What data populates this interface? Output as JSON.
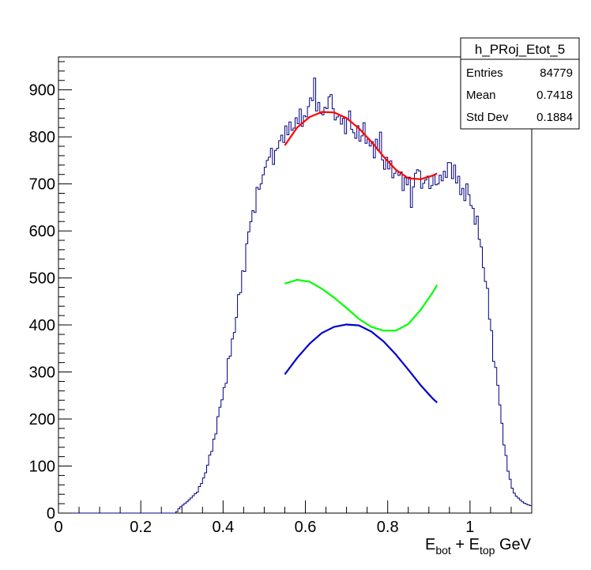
{
  "chart_data": {
    "type": "line",
    "histogram": {
      "name": "h_PRoj_Etot_5",
      "x_min": 0.0,
      "x_max": 1.15,
      "bins": 230,
      "color": "#000080",
      "profile": [
        [
          0.0,
          0
        ],
        [
          0.285,
          0
        ],
        [
          0.295,
          12
        ],
        [
          0.31,
          22
        ],
        [
          0.32,
          30
        ],
        [
          0.34,
          48
        ],
        [
          0.355,
          80
        ],
        [
          0.37,
          125
        ],
        [
          0.38,
          165
        ],
        [
          0.39,
          210
        ],
        [
          0.4,
          255
        ],
        [
          0.41,
          300
        ],
        [
          0.42,
          350
        ],
        [
          0.43,
          410
        ],
        [
          0.44,
          460
        ],
        [
          0.45,
          520
        ],
        [
          0.46,
          580
        ],
        [
          0.47,
          630
        ],
        [
          0.48,
          670
        ],
        [
          0.49,
          700
        ],
        [
          0.5,
          740
        ],
        [
          0.51,
          760
        ],
        [
          0.52,
          760
        ],
        [
          0.53,
          770
        ],
        [
          0.54,
          790
        ],
        [
          0.55,
          815
        ],
        [
          0.56,
          810
        ],
        [
          0.57,
          825
        ],
        [
          0.58,
          840
        ],
        [
          0.59,
          838
        ],
        [
          0.6,
          845
        ],
        [
          0.61,
          860
        ],
        [
          0.62,
          905
        ],
        [
          0.63,
          855
        ],
        [
          0.64,
          848
        ],
        [
          0.65,
          870
        ],
        [
          0.66,
          860
        ],
        [
          0.67,
          855
        ],
        [
          0.68,
          830
        ],
        [
          0.69,
          840
        ],
        [
          0.7,
          820
        ],
        [
          0.71,
          818
        ],
        [
          0.72,
          812
        ],
        [
          0.73,
          800
        ],
        [
          0.74,
          792
        ],
        [
          0.75,
          782
        ],
        [
          0.76,
          785
        ],
        [
          0.77,
          775
        ],
        [
          0.78,
          770
        ],
        [
          0.79,
          750
        ],
        [
          0.8,
          738
        ],
        [
          0.81,
          733
        ],
        [
          0.82,
          722
        ],
        [
          0.83,
          716
        ],
        [
          0.84,
          706
        ],
        [
          0.85,
          700
        ],
        [
          0.86,
          708
        ],
        [
          0.87,
          715
        ],
        [
          0.88,
          705
        ],
        [
          0.89,
          705
        ],
        [
          0.9,
          718
        ],
        [
          0.91,
          715
        ],
        [
          0.92,
          705
        ],
        [
          0.93,
          718
        ],
        [
          0.94,
          725
        ],
        [
          0.95,
          722
        ],
        [
          0.96,
          710
        ],
        [
          0.97,
          700
        ],
        [
          0.98,
          688
        ],
        [
          0.99,
          678
        ],
        [
          1.0,
          668
        ],
        [
          1.01,
          640
        ],
        [
          1.02,
          600
        ],
        [
          1.03,
          550
        ],
        [
          1.04,
          480
        ],
        [
          1.05,
          400
        ],
        [
          1.06,
          320
        ],
        [
          1.07,
          250
        ],
        [
          1.08,
          170
        ],
        [
          1.09,
          100
        ],
        [
          1.1,
          60
        ],
        [
          1.11,
          38
        ],
        [
          1.12,
          30
        ],
        [
          1.13,
          22
        ],
        [
          1.14,
          18
        ],
        [
          1.15,
          15
        ]
      ],
      "spikes": [
        [
          0.62,
          925
        ],
        [
          0.637,
          850
        ],
        [
          0.662,
          890
        ],
        [
          0.706,
          855
        ],
        [
          0.744,
          830
        ],
        [
          0.78,
          810
        ],
        [
          0.858,
          650
        ],
        [
          0.87,
          730
        ],
        [
          0.9,
          690
        ],
        [
          0.92,
          700
        ],
        [
          0.952,
          745
        ],
        [
          0.964,
          740
        ],
        [
          0.99,
          700
        ],
        [
          0.505,
          750
        ],
        [
          0.492,
          700
        ],
        [
          0.58,
          828
        ],
        [
          0.772,
          795
        ]
      ]
    },
    "stats": {
      "title": "h_PRoj_Etot_5",
      "rows": [
        {
          "label": "Entries",
          "value": "84779"
        },
        {
          "label": "Mean",
          "value": "0.7418"
        },
        {
          "label": "Std Dev",
          "value": "0.1884"
        }
      ]
    },
    "fits": [
      {
        "color": "#ff0000",
        "x": [
          0.55,
          0.58,
          0.61,
          0.64,
          0.67,
          0.7,
          0.73,
          0.76,
          0.79,
          0.82,
          0.85,
          0.88,
          0.91,
          0.92
        ],
        "y": [
          782,
          820,
          842,
          853,
          852,
          840,
          818,
          790,
          758,
          730,
          712,
          710,
          718,
          722
        ]
      },
      {
        "color": "#00ff00",
        "x": [
          0.55,
          0.58,
          0.61,
          0.64,
          0.67,
          0.7,
          0.73,
          0.76,
          0.79,
          0.82,
          0.85,
          0.88,
          0.91,
          0.92
        ],
        "y": [
          488,
          496,
          492,
          477,
          458,
          436,
          413,
          396,
          388,
          388,
          402,
          432,
          470,
          485
        ]
      },
      {
        "color": "#0000cc",
        "x": [
          0.55,
          0.58,
          0.61,
          0.64,
          0.67,
          0.7,
          0.73,
          0.76,
          0.79,
          0.82,
          0.85,
          0.88,
          0.91,
          0.92
        ],
        "y": [
          295,
          330,
          360,
          383,
          396,
          401,
          399,
          386,
          365,
          337,
          305,
          272,
          243,
          235
        ]
      }
    ],
    "xlim": [
      0,
      1.15
    ],
    "ylim": [
      0,
      970
    ],
    "xticks": [
      {
        "value": 0,
        "label": "0"
      },
      {
        "value": 0.2,
        "label": "0.2"
      },
      {
        "value": 0.4,
        "label": "0.4"
      },
      {
        "value": 0.6,
        "label": "0.6"
      },
      {
        "value": 0.8,
        "label": "0.8"
      },
      {
        "value": 1.0,
        "label": "1"
      }
    ],
    "yticks": [
      {
        "value": 0,
        "label": "0"
      },
      {
        "value": 100,
        "label": "100"
      },
      {
        "value": 200,
        "label": "200"
      },
      {
        "value": 300,
        "label": "300"
      },
      {
        "value": 400,
        "label": "400"
      },
      {
        "value": 500,
        "label": "500"
      },
      {
        "value": 600,
        "label": "600"
      },
      {
        "value": 700,
        "label": "700"
      },
      {
        "value": 800,
        "label": "800"
      },
      {
        "value": 900,
        "label": "900"
      }
    ],
    "xlabel": {
      "parts": [
        {
          "text": "E",
          "sub": false
        },
        {
          "text": "bot",
          "sub": true
        },
        {
          "text": " + E",
          "sub": false
        },
        {
          "text": "top",
          "sub": true
        },
        {
          "text": " GeV",
          "sub": false
        }
      ]
    },
    "ylabel": "",
    "grid": false,
    "legend": "top-right"
  }
}
